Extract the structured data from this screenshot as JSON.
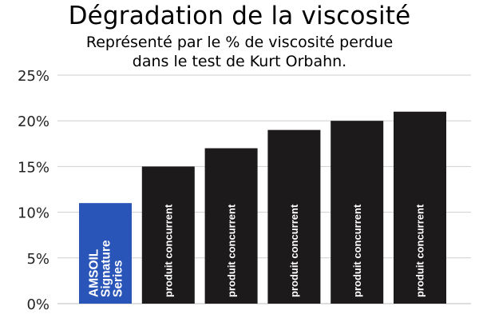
{
  "chart_data": {
    "type": "bar",
    "title": "Dégradation de la viscosité",
    "subtitle_lines": [
      "Représenté par le % de viscosité perdue",
      "dans le test de Kurt Orbahn."
    ],
    "categories": [
      [
        "AMSOIL",
        "Signature",
        "Series"
      ],
      [
        "produit concurrent"
      ],
      [
        "produit concurrent"
      ],
      [
        "produit concurrent"
      ],
      [
        "produit concurrent"
      ],
      [
        "produit concurrent"
      ]
    ],
    "values": [
      11,
      15,
      17,
      19,
      20,
      21
    ],
    "bar_colors": [
      "#2a55b8",
      "#1c1a1a",
      "#1c1a1a",
      "#1c1a1a",
      "#1c1a1a",
      "#1c1a1a"
    ],
    "ylim": [
      0,
      25
    ],
    "y_ticks": [
      {
        "value": 0,
        "label": "0%"
      },
      {
        "value": 5,
        "label": "5%"
      },
      {
        "value": 10,
        "label": "10%"
      },
      {
        "value": 15,
        "label": "15%"
      },
      {
        "value": 20,
        "label": "20%"
      },
      {
        "value": 25,
        "label": "25%"
      }
    ],
    "grid": true,
    "legend": "none"
  }
}
